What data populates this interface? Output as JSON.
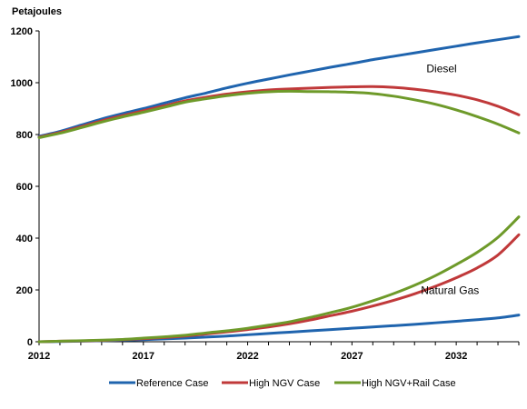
{
  "chart_data": {
    "type": "line",
    "title": "",
    "ylabel": "Petajoules",
    "xlabel": "",
    "xlim": [
      2012,
      2035
    ],
    "ylim": [
      0,
      1200
    ],
    "x_ticks": [
      2012,
      2017,
      2022,
      2027,
      2032
    ],
    "y_ticks": [
      0,
      200,
      400,
      600,
      800,
      1000,
      1200
    ],
    "grid": false,
    "legend": "bottom",
    "annotations": [
      {
        "text": "Diesel",
        "x": 2031.3,
        "y": 1040
      },
      {
        "text": "Natural Gas",
        "x": 2031.7,
        "y": 185
      }
    ],
    "x": [
      2012,
      2013,
      2014,
      2015,
      2016,
      2017,
      2018,
      2019,
      2020,
      2021,
      2022,
      2023,
      2024,
      2025,
      2026,
      2027,
      2028,
      2029,
      2030,
      2031,
      2032,
      2033,
      2034,
      2035
    ],
    "series": [
      {
        "name": "Reference Case",
        "color": "#1F64AE",
        "fuel": "Diesel",
        "values": [
          793,
          812,
          836,
          860,
          881,
          900,
          921,
          942,
          960,
          980,
          998,
          1014,
          1030,
          1045,
          1060,
          1074,
          1089,
          1102,
          1115,
          1128,
          1141,
          1154,
          1166,
          1178
        ]
      },
      {
        "name": "High NGV Case",
        "color": "#C0393A",
        "fuel": "Diesel",
        "values": [
          790,
          808,
          830,
          853,
          873,
          892,
          911,
          930,
          944,
          956,
          965,
          972,
          976,
          979,
          982,
          984,
          985,
          982,
          975,
          965,
          952,
          934,
          909,
          876
        ]
      },
      {
        "name": "High NGV+Rail Case",
        "color": "#6E9A2A",
        "fuel": "Diesel",
        "values": [
          788,
          805,
          826,
          848,
          868,
          886,
          905,
          925,
          938,
          950,
          959,
          965,
          967,
          966,
          965,
          963,
          958,
          948,
          934,
          917,
          895,
          869,
          840,
          806
        ]
      },
      {
        "name": "Reference Case",
        "color": "#1F64AE",
        "fuel": "Natural Gas",
        "values": [
          0,
          1,
          2,
          4,
          6,
          8,
          11,
          14,
          18,
          22,
          27,
          32,
          37,
          42,
          47,
          52,
          57,
          62,
          67,
          73,
          79,
          85,
          92,
          103
        ]
      },
      {
        "name": "High NGV Case",
        "color": "#C0393A",
        "fuel": "Natural Gas",
        "values": [
          0,
          2,
          3,
          5,
          8,
          12,
          16,
          22,
          30,
          38,
          47,
          57,
          69,
          84,
          101,
          118,
          138,
          160,
          185,
          214,
          247,
          285,
          335,
          413
        ]
      },
      {
        "name": "High NGV+Rail Case",
        "color": "#6E9A2A",
        "fuel": "Natural Gas",
        "values": [
          0,
          2,
          4,
          6,
          9,
          14,
          19,
          25,
          34,
          42,
          52,
          64,
          77,
          94,
          113,
          133,
          158,
          186,
          218,
          255,
          298,
          345,
          403,
          482
        ]
      }
    ],
    "legend_entries": [
      {
        "name": "Reference Case",
        "color": "#1F64AE"
      },
      {
        "name": "High NGV Case",
        "color": "#C0393A"
      },
      {
        "name": "High NGV+Rail Case",
        "color": "#6E9A2A"
      }
    ]
  }
}
